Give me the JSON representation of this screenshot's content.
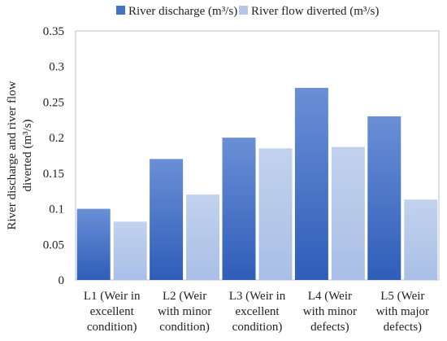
{
  "chart_data": {
    "type": "bar",
    "title": "",
    "xlabel": "",
    "ylabel": "River discharge and river flow diverted (m³/s)",
    "ylim": [
      0,
      0.35
    ],
    "yticks": [
      0,
      0.05,
      0.1,
      0.15,
      0.2,
      0.25,
      0.3,
      0.35
    ],
    "ytick_labels": [
      "0",
      "0.05",
      "0.1",
      "0.15",
      "0.2",
      "0.25",
      "0.3",
      "0.35"
    ],
    "grid": false,
    "legend_position": "top",
    "categories": [
      [
        "L1 (Weir in",
        "excellent",
        "condition)"
      ],
      [
        "L2 (Weir",
        "with minor",
        "condition)"
      ],
      [
        "L3 (Weir in",
        "excellent",
        "condition)"
      ],
      [
        "L4 (Weir",
        "with minor",
        "defects)"
      ],
      [
        "L5 (Weir",
        "with major",
        "defects)"
      ]
    ],
    "series": [
      {
        "name": "River discharge (m³/s)",
        "color": "#4472C4",
        "values": [
          0.1,
          0.17,
          0.2,
          0.27,
          0.23
        ]
      },
      {
        "name": "River flow diverted (m³/s)",
        "color": "#B4C7E7",
        "values": [
          0.082,
          0.12,
          0.185,
          0.187,
          0.113
        ]
      }
    ]
  }
}
